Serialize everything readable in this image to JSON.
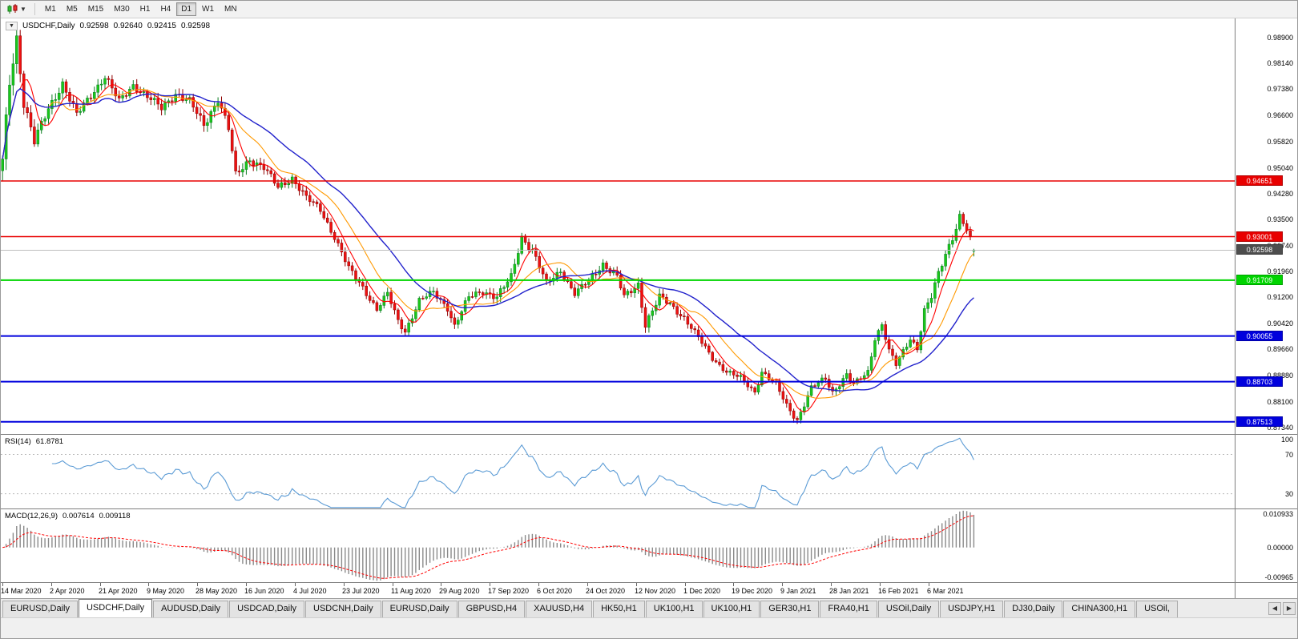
{
  "toolbar": {
    "timeframes": [
      "M1",
      "M5",
      "M15",
      "M30",
      "H1",
      "H4",
      "D1",
      "W1",
      "MN"
    ],
    "active_timeframe": "D1"
  },
  "chart": {
    "collapse_icon": "▼",
    "symbol": "USDCHF,Daily",
    "ohlc": {
      "open": "0.92598",
      "high": "0.92640",
      "low": "0.92415",
      "close": "0.92598"
    },
    "price_axis_labels": [
      "0.98900",
      "0.98140",
      "0.97380",
      "0.96600",
      "0.95820",
      "0.95040",
      "0.94280",
      "0.93500",
      "0.92740",
      "0.91960",
      "0.91200",
      "0.90420",
      "0.89660",
      "0.88880",
      "0.88100",
      "0.87340"
    ],
    "levels": [
      {
        "value": 0.94651,
        "label": "0.94651",
        "color": "#e80000",
        "width": 1.6
      },
      {
        "value": 0.93001,
        "label": "0.93001",
        "color": "#e80000",
        "width": 1.6
      },
      {
        "value": 0.91709,
        "label": "0.91709",
        "color": "#00d400",
        "width": 2
      },
      {
        "value": 0.90055,
        "label": "0.90055",
        "color": "#0000dd",
        "width": 2
      },
      {
        "value": 0.88703,
        "label": "0.88703",
        "color": "#0000dd",
        "width": 2
      },
      {
        "value": 0.87513,
        "label": "0.87513",
        "color": "#0000dd",
        "width": 2
      }
    ],
    "current_price": {
      "value": 0.92598,
      "label": "0.92598",
      "badge_color": "#4d4d4d",
      "line_color": "#bdbdbd"
    },
    "date_axis_labels": [
      "14 Mar 2020",
      "2 Apr 2020",
      "21 Apr 2020",
      "9 May 2020",
      "28 May 2020",
      "16 Jun 2020",
      "4 Jul 2020",
      "23 Jul 2020",
      "11 Aug 2020",
      "29 Aug 2020",
      "17 Sep 2020",
      "6 Oct 2020",
      "24 Oct 2020",
      "12 Nov 2020",
      "1 Dec 2020",
      "19 Dec 2020",
      "9 Jan 2021",
      "28 Jan 2021",
      "16 Feb 2021",
      "6 Mar 2021"
    ]
  },
  "rsi_panel": {
    "name": "RSI(14)",
    "value": "61.8781",
    "axis_labels": [
      "100",
      "70",
      "30"
    ],
    "levels": [
      70,
      30
    ],
    "line_color": "#5b9bd5"
  },
  "macd_panel": {
    "name": "MACD(12,26,9)",
    "main_value": "0.007614",
    "signal_value": "0.009118",
    "axis_labels": [
      "0.010933",
      "0.00000",
      "-0.00965"
    ],
    "histogram_color": "#8a8a8a",
    "signal_color": "#ff0000"
  },
  "tabbar": {
    "tabs": [
      "EURUSD,Daily",
      "USDCHF,Daily",
      "AUDUSD,Daily",
      "USDCAD,Daily",
      "USDCNH,Daily",
      "EURUSD,Daily",
      "GBPUSD,H4",
      "XAUUSD,H4",
      "HK50,H1",
      "UK100,H1",
      "UK100,H1",
      "GER30,H1",
      "FRA40,H1",
      "USOil,Daily",
      "USDJPY,H1",
      "DJ30,Daily",
      "CHINA300,H1",
      "USOil,"
    ],
    "active_index": 1,
    "scroll_left_icon": "◀",
    "scroll_right_icon": "▶"
  },
  "chart_data": {
    "type": "candlestick",
    "symbol": "USDCHF",
    "timeframe": "Daily",
    "title": "USDCHF,Daily 0.92598 0.92640 0.92415 0.92598",
    "candle_count": 276,
    "price_domain": [
      0.8715,
      0.9947
    ],
    "series_width_fraction": 0.79,
    "last_candle_ohlc": [
      0.92598,
      0.9264,
      0.92415,
      0.92598
    ],
    "bull_color": "#1ac81a",
    "bear_color": "#ee1111",
    "close_anchors": [
      [
        0,
        0.952
      ],
      [
        2,
        0.976
      ],
      [
        4,
        0.989
      ],
      [
        6,
        0.97
      ],
      [
        9,
        0.958
      ],
      [
        13,
        0.968
      ],
      [
        17,
        0.9755
      ],
      [
        21,
        0.966
      ],
      [
        25,
        0.972
      ],
      [
        29,
        0.9775
      ],
      [
        33,
        0.97
      ],
      [
        37,
        0.975
      ],
      [
        41,
        0.9715
      ],
      [
        45,
        0.968
      ],
      [
        49,
        0.9725
      ],
      [
        53,
        0.97
      ],
      [
        57,
        0.963
      ],
      [
        61,
        0.971
      ],
      [
        64,
        0.962
      ],
      [
        66,
        0.948
      ],
      [
        70,
        0.953
      ],
      [
        74,
        0.9505
      ],
      [
        78,
        0.9445
      ],
      [
        82,
        0.9475
      ],
      [
        86,
        0.9415
      ],
      [
        90,
        0.938
      ],
      [
        94,
        0.93
      ],
      [
        98,
        0.9205
      ],
      [
        102,
        0.915
      ],
      [
        106,
        0.9085
      ],
      [
        109,
        0.913
      ],
      [
        112,
        0.905
      ],
      [
        114,
        0.902
      ],
      [
        118,
        0.911
      ],
      [
        122,
        0.9135
      ],
      [
        126,
        0.909
      ],
      [
        128,
        0.9035
      ],
      [
        132,
        0.912
      ],
      [
        136,
        0.914
      ],
      [
        140,
        0.912
      ],
      [
        144,
        0.918
      ],
      [
        147,
        0.93
      ],
      [
        150,
        0.926
      ],
      [
        154,
        0.916
      ],
      [
        158,
        0.92
      ],
      [
        162,
        0.913
      ],
      [
        166,
        0.917
      ],
      [
        170,
        0.922
      ],
      [
        174,
        0.918
      ],
      [
        176,
        0.912
      ],
      [
        180,
        0.916
      ],
      [
        182,
        0.904
      ],
      [
        186,
        0.912
      ],
      [
        189,
        0.91
      ],
      [
        193,
        0.906
      ],
      [
        197,
        0.9
      ],
      [
        201,
        0.894
      ],
      [
        205,
        0.89
      ],
      [
        209,
        0.888
      ],
      [
        213,
        0.884
      ],
      [
        215,
        0.89
      ],
      [
        219,
        0.886
      ],
      [
        222,
        0.88
      ],
      [
        225,
        0.8757
      ],
      [
        229,
        0.885
      ],
      [
        233,
        0.888
      ],
      [
        235,
        0.884
      ],
      [
        239,
        0.889
      ],
      [
        241,
        0.886
      ],
      [
        245,
        0.89
      ],
      [
        247,
        0.9
      ],
      [
        249,
        0.904
      ],
      [
        251,
        0.896
      ],
      [
        253,
        0.892
      ],
      [
        255,
        0.896
      ],
      [
        257,
        0.9
      ],
      [
        259,
        0.897
      ],
      [
        261,
        0.908
      ],
      [
        263,
        0.912
      ],
      [
        265,
        0.919
      ],
      [
        267,
        0.925
      ],
      [
        269,
        0.93
      ],
      [
        271,
        0.936
      ],
      [
        273,
        0.932
      ],
      [
        275,
        0.926
      ]
    ],
    "wick_scale_anchors": [
      [
        0,
        3.2
      ],
      [
        6,
        2.4
      ],
      [
        12,
        1.7
      ],
      [
        40,
        1.4
      ],
      [
        64,
        1.8
      ],
      [
        70,
        1.5
      ],
      [
        90,
        1.3
      ],
      [
        120,
        1.2
      ],
      [
        147,
        1.5
      ],
      [
        160,
        1.1
      ],
      [
        182,
        1.5
      ],
      [
        200,
        1.0
      ],
      [
        225,
        1.2
      ],
      [
        247,
        1.1
      ],
      [
        259,
        1.2
      ],
      [
        271,
        1.6
      ],
      [
        275,
        1.1
      ]
    ],
    "moving_averages": [
      {
        "period": 6,
        "color": "#ff0000"
      },
      {
        "period": 14,
        "color": "#ff9900"
      },
      {
        "period": 28,
        "color": "#2222cc"
      }
    ],
    "horizontal_levels": [
      0.94651,
      0.93001,
      0.91709,
      0.90055,
      0.88703,
      0.87513
    ],
    "indicators": [
      {
        "type": "RSI",
        "period": 14,
        "current": 61.8781,
        "shown_levels": [
          70,
          30
        ]
      },
      {
        "type": "MACD",
        "fast": 12,
        "slow": 26,
        "signal": 9,
        "current_main": 0.007614,
        "current_signal": 0.009118,
        "axis_max": 0.010933,
        "axis_min": -0.00965
      }
    ]
  }
}
